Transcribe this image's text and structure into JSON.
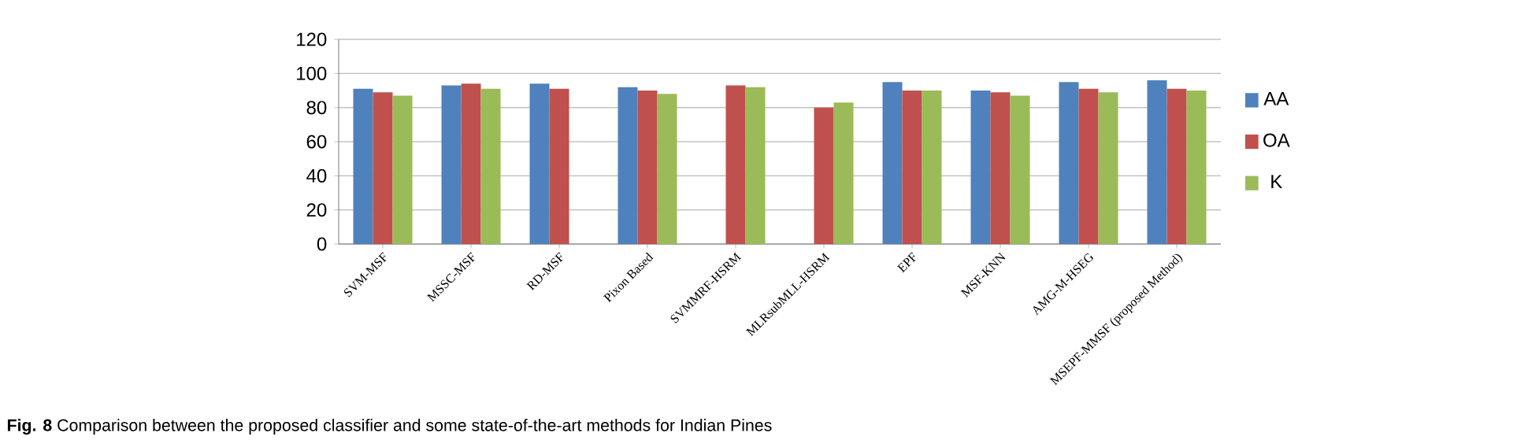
{
  "chart_data": {
    "type": "bar",
    "categories": [
      "SVM-MSF",
      "MSSC-MSF",
      "RD-MSF",
      "Pixon Based",
      "SVMMRF-HSRM",
      "MLRsubMLL-HSRM",
      "EPF",
      "MSF-KNN",
      "AMG-M-HSEG",
      "MSEPF-MMSF (proposed Method)"
    ],
    "series": [
      {
        "name": "AA",
        "color": "#4f81bd",
        "values": [
          91,
          93,
          94,
          92,
          null,
          null,
          95,
          90,
          95,
          96
        ]
      },
      {
        "name": "OA",
        "color": "#c0504d",
        "values": [
          89,
          94,
          91,
          90,
          93,
          80,
          90,
          89,
          91,
          91
        ]
      },
      {
        "name": "K",
        "color": "#9bbb59",
        "values": [
          87,
          91,
          null,
          88,
          92,
          83,
          90,
          87,
          89,
          90
        ]
      }
    ],
    "ylim": [
      0,
      120
    ],
    "yticks": [
      0,
      20,
      40,
      60,
      80,
      100,
      120
    ],
    "grid": "y",
    "legend": "right",
    "annotations": [
      "**Fig. 8** Comparison between the proposed classifier and some state-of-the-art methods for Indian Pines"
    ]
  }
}
